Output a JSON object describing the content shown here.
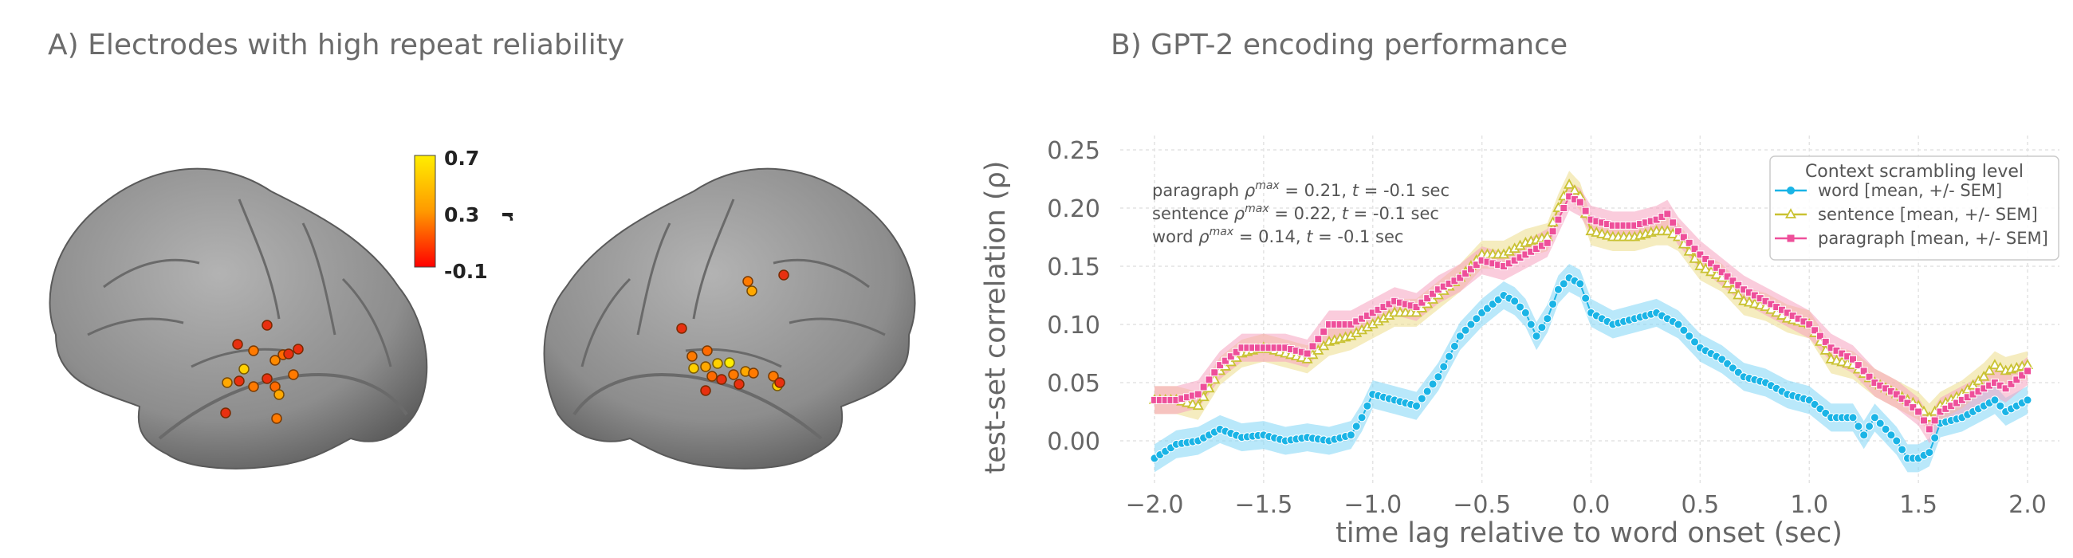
{
  "panel_a": {
    "title": "A) Electrodes with high repeat reliability",
    "colorbar": {
      "max_label": "0.7",
      "mid_label": "0.3",
      "min_label": "-0.1",
      "label": "r",
      "colors": [
        "#ffee00",
        "#ff9900",
        "#ff0000"
      ]
    }
  },
  "panel_b": {
    "title": "B) GPT-2 encoding performance"
  },
  "chart_data": {
    "type": "line",
    "title": "B) GPT-2 encoding performance",
    "xlabel": "time lag relative to word onset (sec)",
    "ylabel": "test-set correlation (ρ)",
    "xlim": [
      -2.0,
      2.0
    ],
    "ylim": [
      -0.03,
      0.25
    ],
    "xticks": [
      "−2.0",
      "−1.5",
      "−1.0",
      "−0.5",
      "0.0",
      "0.5",
      "1.0",
      "1.5",
      "2.0"
    ],
    "xtick_values": [
      -2.0,
      -1.5,
      -1.0,
      -0.5,
      0.0,
      0.5,
      1.0,
      1.5,
      2.0
    ],
    "yticks": [
      "0.00",
      "0.05",
      "0.10",
      "0.15",
      "0.20",
      "0.25"
    ],
    "ytick_values": [
      0.0,
      0.05,
      0.1,
      0.15,
      0.2,
      0.25
    ],
    "grid": true,
    "legend": {
      "title": "Context scrambling level",
      "placement": "top-right"
    },
    "annotations": [
      {
        "label": "paragraph",
        "value": "= 0.21, ",
        "t": "= -0.1 sec"
      },
      {
        "label": "sentence",
        "value": "= 0.22, ",
        "t": "= -0.1 sec"
      },
      {
        "label": "word",
        "value": "= 0.14, ",
        "t": "= -0.1 sec"
      }
    ],
    "series": [
      {
        "name": "word [mean, +/- SEM]",
        "color": "#1ab4e6",
        "band": "#7fd6f5",
        "marker": "circle",
        "sem": 0.012,
        "points": [
          [
            -2.0,
            -0.015
          ],
          [
            -1.9,
            -0.003
          ],
          [
            -1.8,
            0.0
          ],
          [
            -1.7,
            0.01
          ],
          [
            -1.6,
            0.003
          ],
          [
            -1.5,
            0.005
          ],
          [
            -1.4,
            0.0
          ],
          [
            -1.3,
            0.003
          ],
          [
            -1.2,
            0.0
          ],
          [
            -1.1,
            0.005
          ],
          [
            -1.05,
            0.02
          ],
          [
            -1.0,
            0.04
          ],
          [
            -0.9,
            0.035
          ],
          [
            -0.8,
            0.03
          ],
          [
            -0.7,
            0.055
          ],
          [
            -0.6,
            0.09
          ],
          [
            -0.5,
            0.11
          ],
          [
            -0.4,
            0.125
          ],
          [
            -0.35,
            0.12
          ],
          [
            -0.3,
            0.11
          ],
          [
            -0.25,
            0.09
          ],
          [
            -0.2,
            0.105
          ],
          [
            -0.15,
            0.13
          ],
          [
            -0.1,
            0.14
          ],
          [
            -0.05,
            0.135
          ],
          [
            0.0,
            0.11
          ],
          [
            0.1,
            0.1
          ],
          [
            0.2,
            0.105
          ],
          [
            0.3,
            0.11
          ],
          [
            0.4,
            0.1
          ],
          [
            0.5,
            0.08
          ],
          [
            0.6,
            0.07
          ],
          [
            0.7,
            0.055
          ],
          [
            0.8,
            0.05
          ],
          [
            0.9,
            0.04
          ],
          [
            1.0,
            0.035
          ],
          [
            1.1,
            0.02
          ],
          [
            1.2,
            0.02
          ],
          [
            1.25,
            0.005
          ],
          [
            1.3,
            0.02
          ],
          [
            1.4,
            0.0
          ],
          [
            1.45,
            -0.015
          ],
          [
            1.5,
            -0.015
          ],
          [
            1.55,
            -0.01
          ],
          [
            1.6,
            0.015
          ],
          [
            1.7,
            0.02
          ],
          [
            1.75,
            0.025
          ],
          [
            1.8,
            0.03
          ],
          [
            1.85,
            0.035
          ],
          [
            1.9,
            0.025
          ],
          [
            2.0,
            0.035
          ]
        ]
      },
      {
        "name": "sentence [mean, +/- SEM]",
        "color": "#c9c232",
        "band": "#ecdc8a",
        "marker": "triangle",
        "sem": 0.012,
        "points": [
          [
            -2.0,
            0.035
          ],
          [
            -1.9,
            0.035
          ],
          [
            -1.8,
            0.03
          ],
          [
            -1.7,
            0.06
          ],
          [
            -1.6,
            0.075
          ],
          [
            -1.5,
            0.08
          ],
          [
            -1.4,
            0.075
          ],
          [
            -1.3,
            0.07
          ],
          [
            -1.2,
            0.085
          ],
          [
            -1.1,
            0.09
          ],
          [
            -1.0,
            0.1
          ],
          [
            -0.9,
            0.11
          ],
          [
            -0.8,
            0.11
          ],
          [
            -0.7,
            0.125
          ],
          [
            -0.6,
            0.14
          ],
          [
            -0.5,
            0.16
          ],
          [
            -0.4,
            0.16
          ],
          [
            -0.3,
            0.17
          ],
          [
            -0.2,
            0.175
          ],
          [
            -0.15,
            0.2
          ],
          [
            -0.1,
            0.22
          ],
          [
            -0.05,
            0.21
          ],
          [
            0.0,
            0.18
          ],
          [
            0.1,
            0.175
          ],
          [
            0.2,
            0.175
          ],
          [
            0.3,
            0.18
          ],
          [
            0.35,
            0.18
          ],
          [
            0.4,
            0.175
          ],
          [
            0.5,
            0.15
          ],
          [
            0.6,
            0.14
          ],
          [
            0.7,
            0.12
          ],
          [
            0.8,
            0.115
          ],
          [
            0.9,
            0.105
          ],
          [
            1.0,
            0.1
          ],
          [
            1.1,
            0.07
          ],
          [
            1.2,
            0.065
          ],
          [
            1.3,
            0.05
          ],
          [
            1.4,
            0.04
          ],
          [
            1.5,
            0.03
          ],
          [
            1.55,
            0.02
          ],
          [
            1.6,
            0.03
          ],
          [
            1.7,
            0.04
          ],
          [
            1.8,
            0.055
          ],
          [
            1.85,
            0.065
          ],
          [
            1.9,
            0.06
          ],
          [
            2.0,
            0.065
          ]
        ]
      },
      {
        "name": "paragraph [mean, +/- SEM]",
        "color": "#ee4f9a",
        "band": "#f5a3bf",
        "marker": "square",
        "sem": 0.012,
        "points": [
          [
            -2.0,
            0.035
          ],
          [
            -1.9,
            0.035
          ],
          [
            -1.8,
            0.04
          ],
          [
            -1.7,
            0.065
          ],
          [
            -1.6,
            0.08
          ],
          [
            -1.5,
            0.08
          ],
          [
            -1.4,
            0.08
          ],
          [
            -1.3,
            0.075
          ],
          [
            -1.2,
            0.1
          ],
          [
            -1.1,
            0.1
          ],
          [
            -1.0,
            0.11
          ],
          [
            -0.9,
            0.12
          ],
          [
            -0.8,
            0.115
          ],
          [
            -0.7,
            0.13
          ],
          [
            -0.6,
            0.14
          ],
          [
            -0.5,
            0.155
          ],
          [
            -0.4,
            0.15
          ],
          [
            -0.3,
            0.16
          ],
          [
            -0.2,
            0.17
          ],
          [
            -0.15,
            0.19
          ],
          [
            -0.1,
            0.21
          ],
          [
            -0.05,
            0.205
          ],
          [
            0.0,
            0.19
          ],
          [
            0.1,
            0.185
          ],
          [
            0.2,
            0.185
          ],
          [
            0.3,
            0.19
          ],
          [
            0.35,
            0.195
          ],
          [
            0.4,
            0.18
          ],
          [
            0.5,
            0.16
          ],
          [
            0.6,
            0.145
          ],
          [
            0.7,
            0.13
          ],
          [
            0.8,
            0.12
          ],
          [
            0.9,
            0.11
          ],
          [
            1.0,
            0.1
          ],
          [
            1.1,
            0.08
          ],
          [
            1.2,
            0.07
          ],
          [
            1.3,
            0.05
          ],
          [
            1.4,
            0.04
          ],
          [
            1.5,
            0.025
          ],
          [
            1.55,
            0.01
          ],
          [
            1.6,
            0.025
          ],
          [
            1.7,
            0.035
          ],
          [
            1.8,
            0.045
          ],
          [
            1.85,
            0.05
          ],
          [
            1.9,
            0.045
          ],
          [
            2.0,
            0.06
          ]
        ]
      }
    ]
  }
}
